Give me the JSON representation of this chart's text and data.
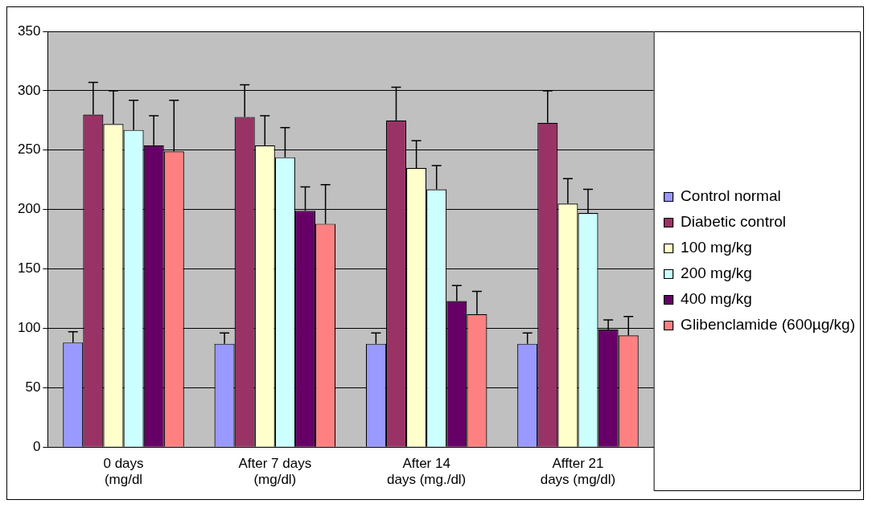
{
  "chart_data": {
    "type": "bar",
    "categories": [
      "0 days\n(mg/dl",
      "After 7 days\n(mg/dl)",
      "After 14\ndays (mg./dl)",
      "Affter 21\ndays (mg/dl)"
    ],
    "series": [
      {
        "name": "Control normal",
        "color": "#9999ff",
        "values": [
          88,
          87,
          87,
          87
        ],
        "errors": [
          [
            88,
            97
          ],
          [
            87,
            96
          ],
          [
            87,
            96
          ],
          [
            87,
            96
          ]
        ]
      },
      {
        "name": "Diabetic control",
        "color": "#993366",
        "values": [
          280,
          278,
          275,
          273
        ],
        "errors": [
          [
            280,
            307
          ],
          [
            278,
            305
          ],
          [
            275,
            303
          ],
          [
            273,
            300
          ]
        ]
      },
      {
        "name": "100 mg/kg",
        "color": "#ffffcc",
        "values": [
          272,
          254,
          235,
          205
        ],
        "errors": [
          [
            272,
            300
          ],
          [
            254,
            279
          ],
          [
            235,
            258
          ],
          [
            205,
            226
          ]
        ]
      },
      {
        "name": "200 mg/kg",
        "color": "#ccffff",
        "values": [
          267,
          244,
          217,
          197
        ],
        "errors": [
          [
            267,
            292
          ],
          [
            244,
            269
          ],
          [
            217,
            237
          ],
          [
            197,
            217
          ]
        ]
      },
      {
        "name": "400 mg/kg",
        "color": "#660066",
        "values": [
          254,
          199,
          123,
          99
        ],
        "errors": [
          [
            254,
            279
          ],
          [
            199,
            219
          ],
          [
            123,
            136
          ],
          [
            99,
            107
          ]
        ]
      },
      {
        "name": "Glibenclamide (600µg/kg)",
        "color": "#ff8080",
        "values": [
          249,
          188,
          112,
          94
        ],
        "errors": [
          [
            249,
            292
          ],
          [
            188,
            221
          ],
          [
            112,
            131
          ],
          [
            94,
            110
          ]
        ]
      }
    ],
    "ylim": [
      0,
      350
    ],
    "yticks": [
      0,
      50,
      100,
      150,
      200,
      250,
      300,
      350
    ],
    "grid": "y",
    "legend": "right"
  }
}
